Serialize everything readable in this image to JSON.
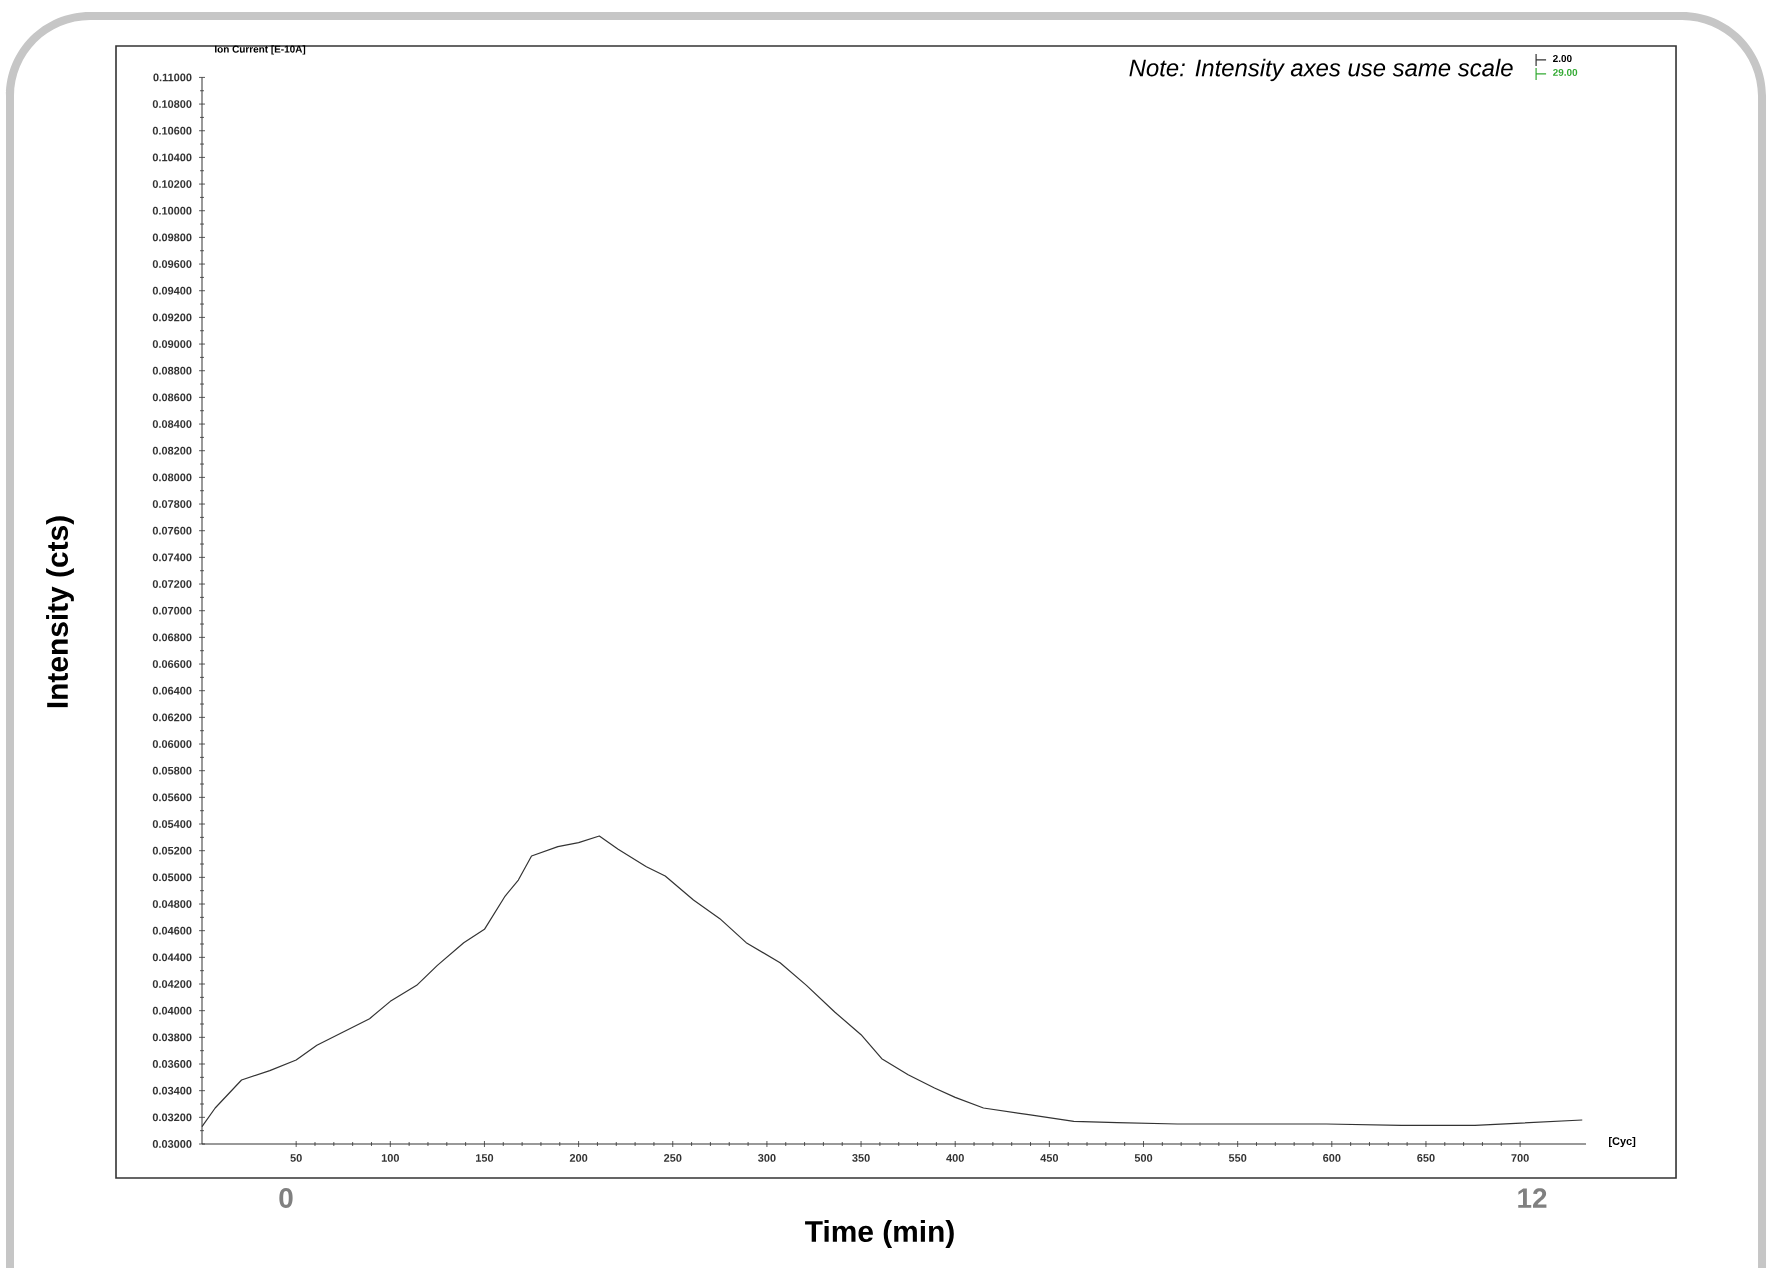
{
  "chart_data": {
    "type": "line",
    "ylabel": "Intensity (cts)",
    "xlabel": "Time (min)",
    "annotations": [
      "Ion Current [E-10A]",
      "Note: Intensity axes use same scale",
      "[Cyc]",
      "0",
      "12"
    ],
    "legend": "top right",
    "xlim": [
      0,
      735
    ],
    "xticks": [
      50,
      100,
      150,
      200,
      250,
      300,
      350,
      400,
      450,
      500,
      550,
      600,
      650,
      700
    ],
    "ylim": [
      0.03,
      0.11
    ],
    "yticks": [
      {
        "value": 0.03,
        "label": "0.03000"
      },
      {
        "value": 0.032,
        "label": "0.03200"
      },
      {
        "value": 0.034,
        "label": "0.03400"
      },
      {
        "value": 0.036,
        "label": "0.03600"
      },
      {
        "value": 0.038,
        "label": "0.03800"
      },
      {
        "value": 0.04,
        "label": "0.04000"
      },
      {
        "value": 0.042,
        "label": "0.04200"
      },
      {
        "value": 0.044,
        "label": "0.04400"
      },
      {
        "value": 0.046,
        "label": "0.04600"
      },
      {
        "value": 0.048,
        "label": "0.04800"
      },
      {
        "value": 0.05,
        "label": "0.05000"
      },
      {
        "value": 0.052,
        "label": "0.05200"
      },
      {
        "value": 0.054,
        "label": "0.05400"
      },
      {
        "value": 0.056,
        "label": "0.05600"
      },
      {
        "value": 0.058,
        "label": "0.05800"
      },
      {
        "value": 0.06,
        "label": "0.06000"
      },
      {
        "value": 0.062,
        "label": "0.06200"
      },
      {
        "value": 0.064,
        "label": "0.06400"
      },
      {
        "value": 0.066,
        "label": "0.06600"
      },
      {
        "value": 0.068,
        "label": "0.06800"
      },
      {
        "value": 0.07,
        "label": "0.07000"
      },
      {
        "value": 0.072,
        "label": "0.07200"
      },
      {
        "value": 0.074,
        "label": "0.07400"
      },
      {
        "value": 0.076,
        "label": "0.07600"
      },
      {
        "value": 0.078,
        "label": "0.07800"
      },
      {
        "value": 0.08,
        "label": "0.08000"
      },
      {
        "value": 0.082,
        "label": "0.08200"
      },
      {
        "value": 0.084,
        "label": "0.08400"
      },
      {
        "value": 0.086,
        "label": "0.08600"
      },
      {
        "value": 0.088,
        "label": "0.08800"
      },
      {
        "value": 0.09,
        "label": "0.09000"
      },
      {
        "value": 0.092,
        "label": "0.09200"
      },
      {
        "value": 0.094,
        "label": "0.09400"
      },
      {
        "value": 0.096,
        "label": "0.09600"
      },
      {
        "value": 0.098,
        "label": "0.09800"
      },
      {
        "value": 0.1,
        "label": "0.10000"
      },
      {
        "value": 0.102,
        "label": "0.10200"
      },
      {
        "value": 0.104,
        "label": "0.10400"
      },
      {
        "value": 0.106,
        "label": "0.10600"
      },
      {
        "value": 0.108,
        "label": "0.10800"
      },
      {
        "value": 0.11,
        "label": "0.11000"
      }
    ],
    "series": [
      {
        "name": "2.00",
        "color": "#333333",
        "x": [
          0,
          7,
          21,
          36,
          50,
          61,
          75,
          89,
          100,
          114,
          125,
          139,
          150,
          161,
          168,
          175,
          189,
          200,
          211,
          221,
          236,
          246,
          261,
          275,
          289,
          307,
          321,
          336,
          350,
          361,
          375,
          389,
          400,
          415,
          439,
          463,
          486,
          518,
          558,
          597,
          637,
          676,
          733
        ],
        "values": [
          0.0313,
          0.0327,
          0.0348,
          0.0355,
          0.0363,
          0.0374,
          0.0384,
          0.0394,
          0.0407,
          0.0419,
          0.0434,
          0.0451,
          0.0461,
          0.0486,
          0.0498,
          0.0516,
          0.0523,
          0.0526,
          0.0531,
          0.0521,
          0.0508,
          0.0501,
          0.0483,
          0.0469,
          0.0451,
          0.0436,
          0.0419,
          0.0399,
          0.0382,
          0.0364,
          0.0352,
          0.0342,
          0.0335,
          0.0327,
          0.0322,
          0.0317,
          0.0316,
          0.0315,
          0.0315,
          0.0315,
          0.0314,
          0.0314,
          0.0318
        ]
      },
      {
        "name": "29.00",
        "color": "#33aa33"
      }
    ]
  }
}
